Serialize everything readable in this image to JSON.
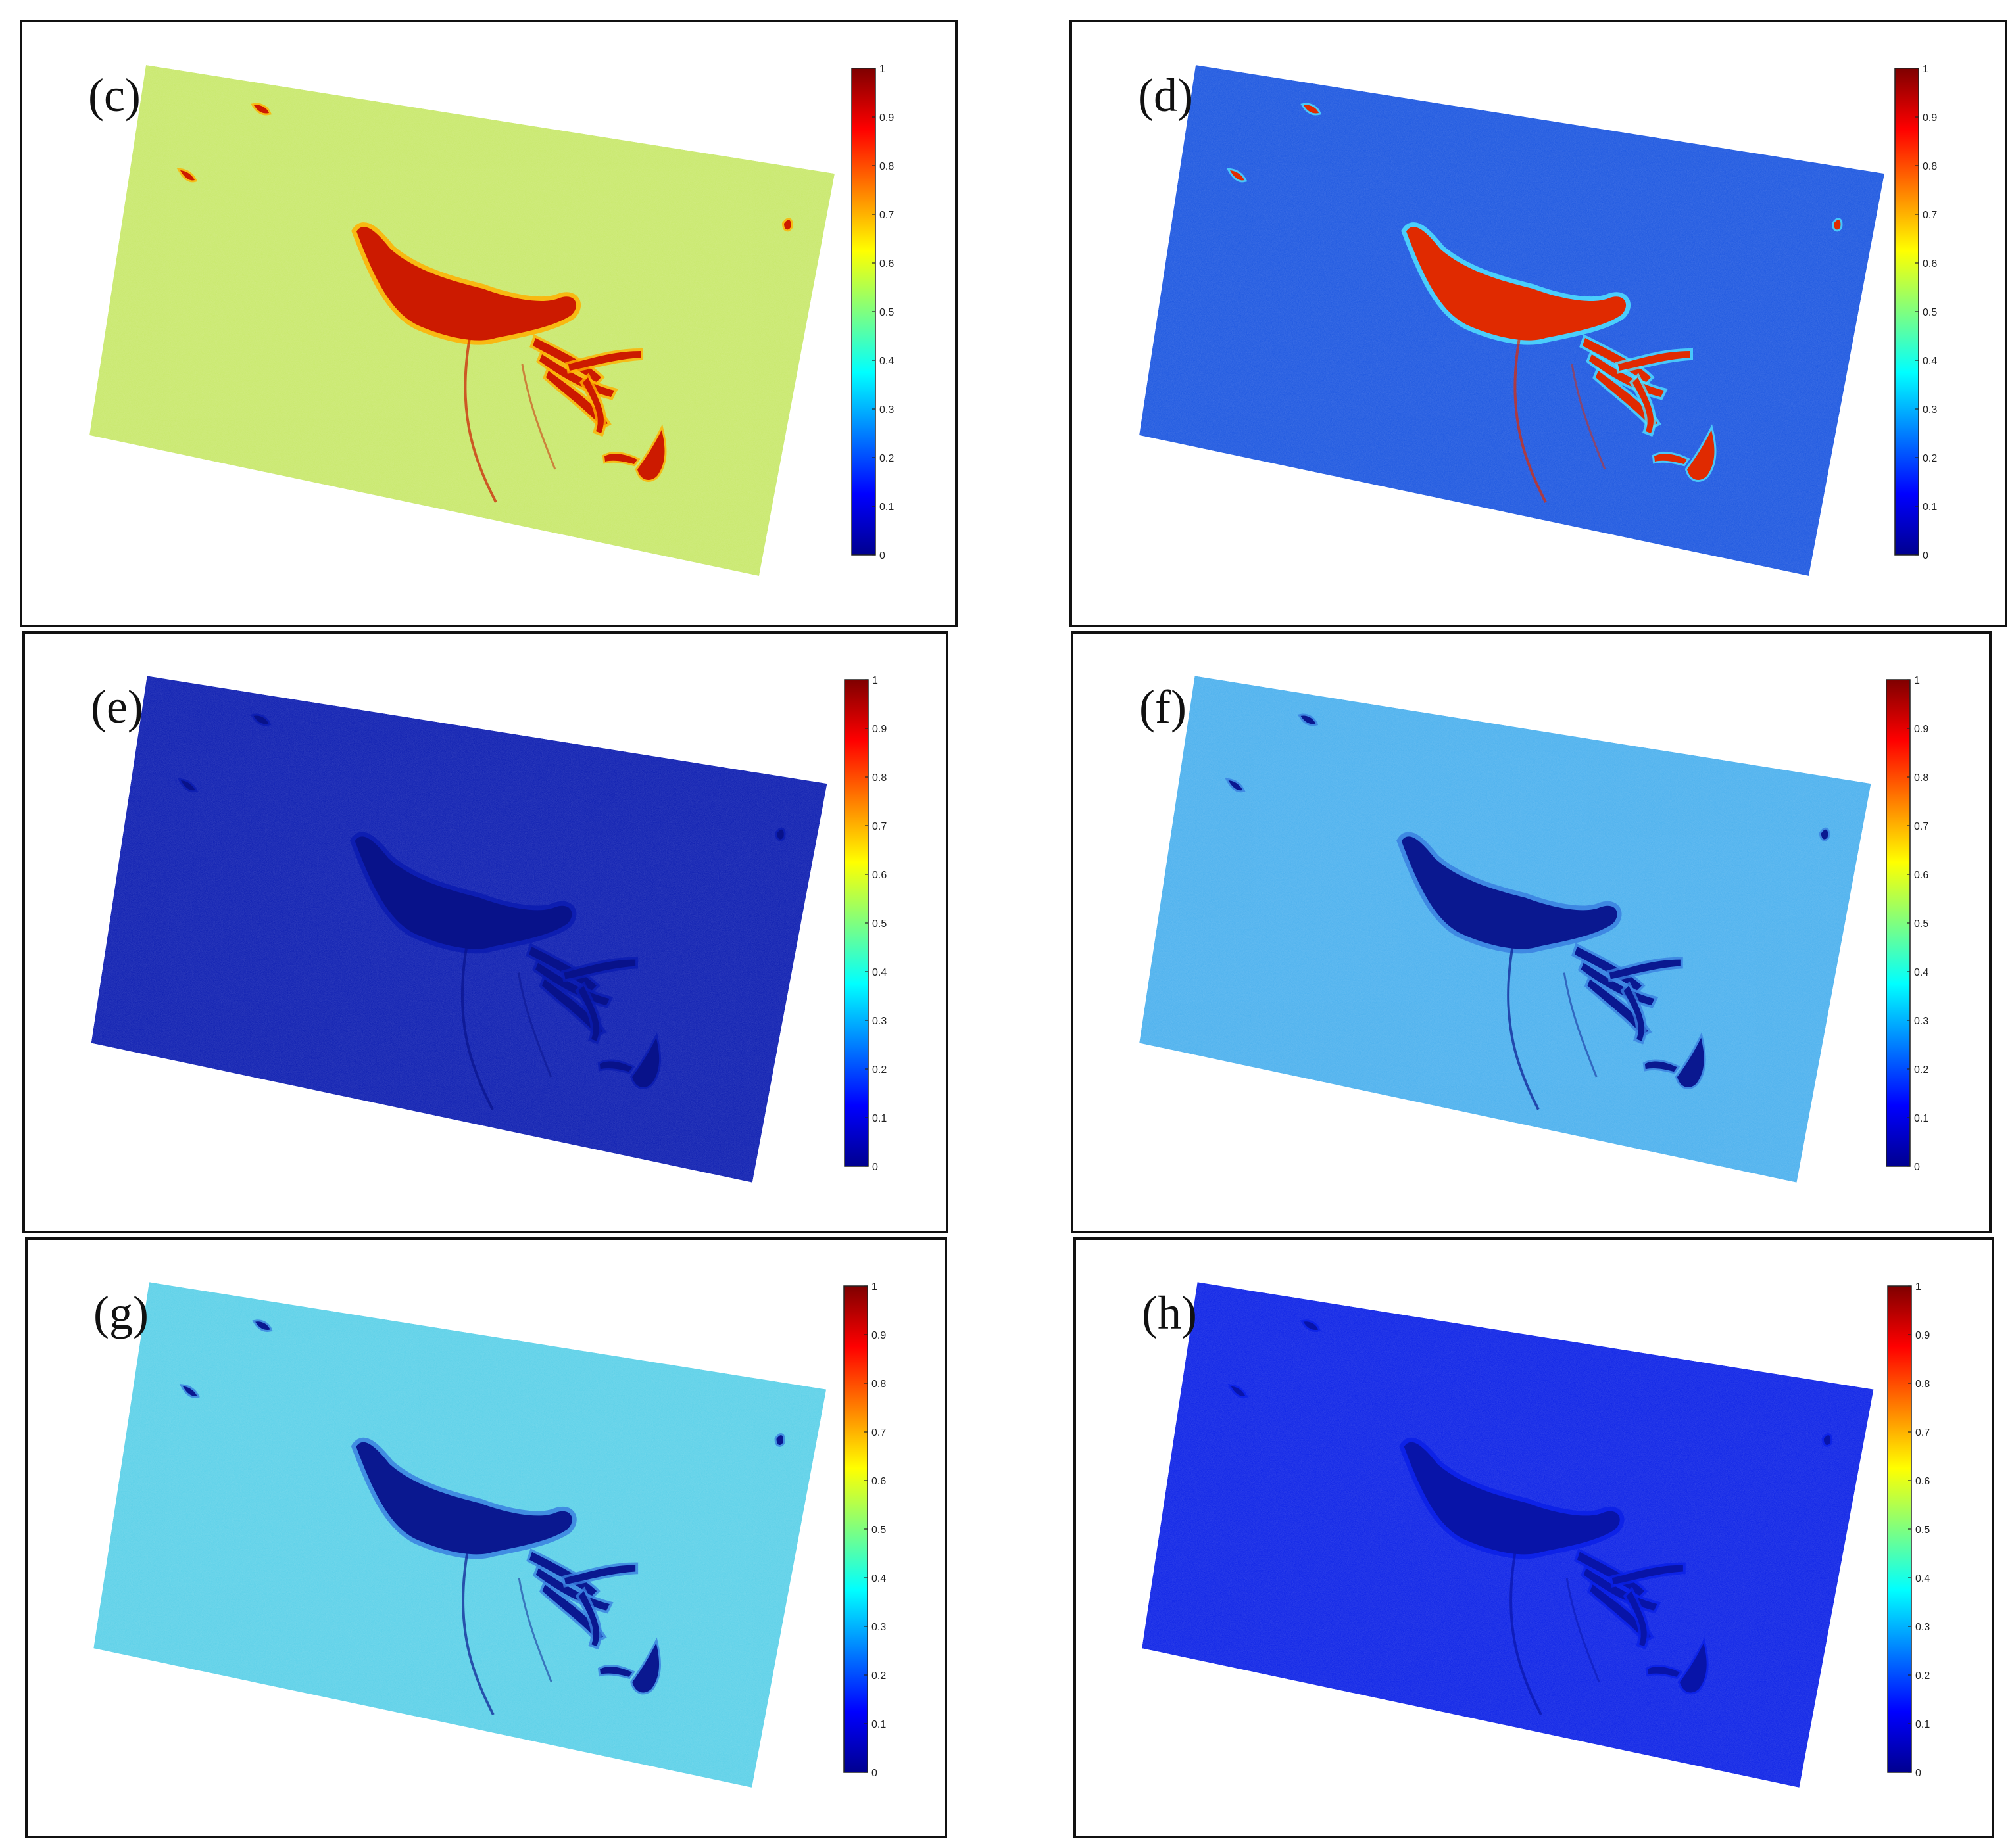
{
  "colorbar": {
    "ticks": [
      "1",
      "0.9",
      "0.8",
      "0.7",
      "0.6",
      "0.5",
      "0.4",
      "0.3",
      "0.2",
      "0.1",
      "0"
    ],
    "stops": [
      "#7f0000",
      "#ff0000",
      "#ff7f00",
      "#ffff00",
      "#7fff7f",
      "#00ffff",
      "#007fff",
      "#0000ff",
      "#00008f"
    ]
  },
  "panels": [
    {
      "id": "c",
      "label": "(c)",
      "background_color": "#c8e86a",
      "slick_color": "#cc1a00",
      "edge_color": "#ffb000"
    },
    {
      "id": "d",
      "label": "(d)",
      "background_color": "#1a55e0",
      "slick_color": "#e02a00",
      "edge_color": "#50e0ff"
    },
    {
      "id": "e",
      "label": "(e)",
      "background_color": "#0a1bb0",
      "slick_color": "#08128a",
      "edge_color": "#0a1bb0"
    },
    {
      "id": "f",
      "label": "(f)",
      "background_color": "#4ab0ee",
      "slick_color": "#0a1890",
      "edge_color": "#3a80e0"
    },
    {
      "id": "g",
      "label": "(g)",
      "background_color": "#5ad0e8",
      "slick_color": "#0a1890",
      "edge_color": "#3a80e0"
    },
    {
      "id": "h",
      "label": "(h)",
      "background_color": "#0a20e6",
      "slick_color": "#0814a8",
      "edge_color": "#0a20e6"
    }
  ]
}
